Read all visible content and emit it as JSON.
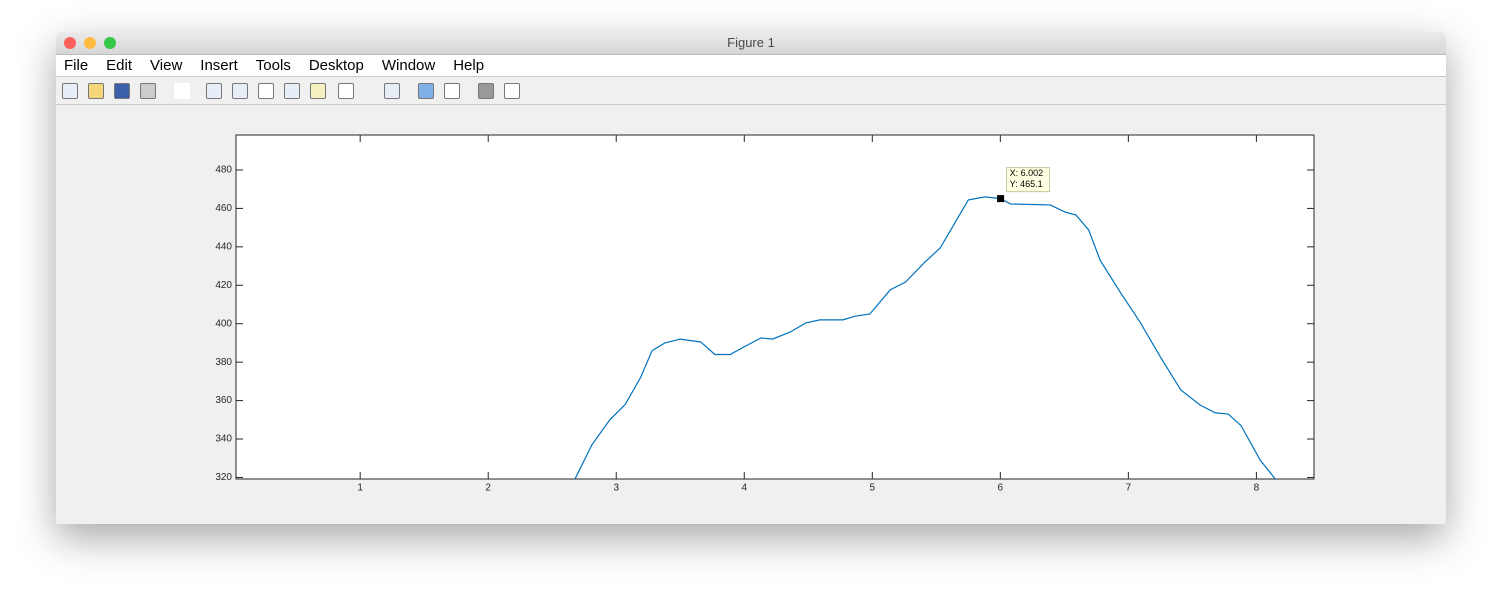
{
  "window": {
    "title": "Figure 1",
    "menu": [
      "File",
      "Edit",
      "View",
      "Insert",
      "Tools",
      "Desktop",
      "Window",
      "Help"
    ]
  },
  "chart_data": {
    "type": "line",
    "color": "#0072bd",
    "grid": false,
    "xlim": [
      0.03,
      8.45
    ],
    "ylim": [
      319.2,
      498.2
    ],
    "xticks": [
      1,
      2,
      3,
      4,
      5,
      6,
      7,
      8
    ],
    "yticks": [
      320,
      340,
      360,
      380,
      400,
      420,
      440,
      460,
      480
    ],
    "x": [
      2.6,
      2.68,
      2.81,
      2.95,
      3.07,
      3.19,
      3.28,
      3.38,
      3.5,
      3.66,
      3.77,
      3.89,
      4.0,
      4.13,
      4.22,
      4.36,
      4.48,
      4.59,
      4.77,
      4.87,
      4.98,
      5.14,
      5.26,
      5.41,
      5.53,
      5.65,
      5.75,
      5.88,
      6.002,
      6.08,
      6.39,
      6.51,
      6.59,
      6.69,
      6.78,
      6.94,
      7.09,
      7.25,
      7.41,
      7.56,
      7.68,
      7.78,
      7.88,
      8.03,
      8.15,
      8.23
    ],
    "values": [
      310,
      319.5,
      337,
      350,
      358,
      372,
      386,
      390,
      392,
      390.5,
      384,
      384,
      388,
      392.6,
      392,
      395.7,
      400.4,
      402,
      402,
      404,
      405,
      417.6,
      421.7,
      432,
      439.4,
      453,
      464.4,
      466,
      465.1,
      462.3,
      461.8,
      458,
      456.6,
      448.8,
      433,
      416,
      401,
      382.7,
      365.5,
      357.7,
      353.6,
      353,
      347,
      329,
      319,
      311
    ],
    "datatip": {
      "x": 6.002,
      "y": 465.1,
      "x_label": "X: 6.002",
      "y_label": "Y: 465.1"
    }
  }
}
